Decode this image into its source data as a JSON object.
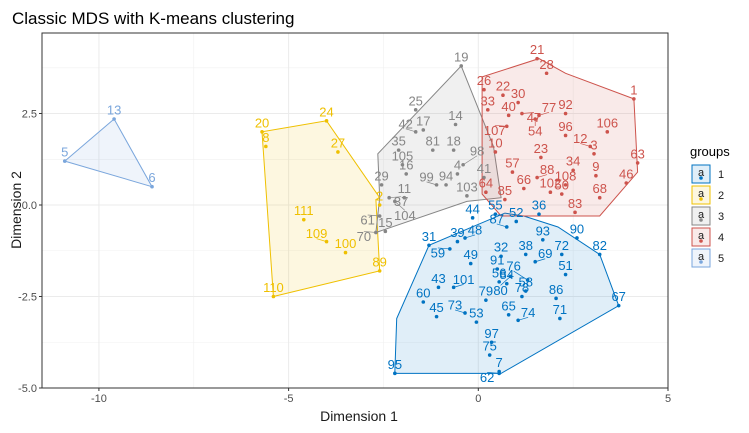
{
  "chart_data": {
    "type": "scatter",
    "title": "Classic MDS with K-means clustering",
    "xlabel": "Dimension 1",
    "ylabel": "Dimension 2",
    "xlim": [
      -11.5,
      5
    ],
    "ylim": [
      -5,
      4.7
    ],
    "x_ticks": [
      "-10",
      "-5",
      "0",
      "5"
    ],
    "y_ticks": [
      "-5.0",
      "-2.5",
      "0.0",
      "2.5"
    ],
    "grid": true,
    "legend": {
      "title": "groups",
      "position": "right",
      "entries": [
        "1",
        "2",
        "3",
        "4",
        "5"
      ]
    },
    "colors": {
      "1": "#0073C2",
      "2": "#EFC000",
      "3": "#868686",
      "4": "#CD534C",
      "5": "#7AA6DC"
    },
    "hulls": {
      "1": [
        [
          -2.2,
          -4.6
        ],
        [
          0.6,
          -4.6
        ],
        [
          3.7,
          -2.75
        ],
        [
          3.2,
          -1.35
        ],
        [
          2.1,
          -0.6
        ],
        [
          1.2,
          -0.3
        ],
        [
          0.7,
          -0.22
        ],
        [
          -1.3,
          -1.1
        ],
        [
          -2.15,
          -3.1
        ]
      ],
      "2": [
        [
          -5.4,
          -2.5
        ],
        [
          -2.6,
          -1.8
        ],
        [
          -2.7,
          0.15
        ],
        [
          -2.6,
          0.2
        ],
        [
          -4,
          2.3
        ],
        [
          -5.7,
          2.0
        ]
      ],
      "3": [
        [
          -2.7,
          -0.75
        ],
        [
          -0.3,
          0.1
        ],
        [
          0.6,
          0.2
        ],
        [
          0.4,
          1.6
        ],
        [
          -0.45,
          3.8
        ],
        [
          -2.65,
          1.4
        ],
        [
          -2.6,
          0.2
        ]
      ],
      "4": [
        [
          0.1,
          0.3
        ],
        [
          0.6,
          -0.3
        ],
        [
          3.2,
          -0.3
        ],
        [
          4.2,
          0.9
        ],
        [
          4.1,
          2.9
        ],
        [
          2.3,
          3.6
        ],
        [
          1.6,
          4.0
        ],
        [
          0.1,
          3.5
        ]
      ],
      "5": [
        [
          -10.9,
          1.2
        ],
        [
          -9.6,
          2.35
        ],
        [
          -8.6,
          0.5
        ]
      ]
    },
    "points": [
      {
        "label": "1",
        "group": 4,
        "x": 4.1,
        "y": 2.9
      },
      {
        "label": "2",
        "group": 2,
        "x": -2.6,
        "y": 0.0
      },
      {
        "label": "3",
        "group": 4,
        "x": 3.05,
        "y": 1.4
      },
      {
        "label": "4",
        "group": 3,
        "x": -0.55,
        "y": 0.85
      },
      {
        "label": "5",
        "group": 5,
        "x": -10.9,
        "y": 1.2
      },
      {
        "label": "6",
        "group": 5,
        "x": -8.6,
        "y": 0.5
      },
      {
        "label": "7",
        "group": 1,
        "x": 0.55,
        "y": -4.55
      },
      {
        "label": "8",
        "group": 2,
        "x": -5.6,
        "y": 1.6
      },
      {
        "label": "9",
        "group": 4,
        "x": 3.1,
        "y": 0.8
      },
      {
        "label": "10",
        "group": 4,
        "x": 0.45,
        "y": 1.45
      },
      {
        "label": "11",
        "group": 3,
        "x": -1.95,
        "y": 0.2
      },
      {
        "label": "12",
        "group": 4,
        "x": 2.95,
        "y": 1.6
      },
      {
        "label": "13",
        "group": 5,
        "x": -9.6,
        "y": 2.35
      },
      {
        "label": "14",
        "group": 3,
        "x": -0.6,
        "y": 2.2
      },
      {
        "label": "15",
        "group": 3,
        "x": -2.45,
        "y": -0.72
      },
      {
        "label": "16",
        "group": 3,
        "x": -1.9,
        "y": 0.85
      },
      {
        "label": "17",
        "group": 3,
        "x": -1.45,
        "y": 2.05
      },
      {
        "label": "18",
        "group": 3,
        "x": -0.65,
        "y": 1.5
      },
      {
        "label": "19",
        "group": 3,
        "x": -0.45,
        "y": 3.8
      },
      {
        "label": "20",
        "group": 2,
        "x": -5.7,
        "y": 2.0
      },
      {
        "label": "21",
        "group": 4,
        "x": 1.55,
        "y": 4.0
      },
      {
        "label": "22",
        "group": 4,
        "x": 0.65,
        "y": 3.0
      },
      {
        "label": "23",
        "group": 4,
        "x": 1.65,
        "y": 1.3
      },
      {
        "label": "24",
        "group": 2,
        "x": -4.0,
        "y": 2.3
      },
      {
        "label": "25",
        "group": 3,
        "x": -1.65,
        "y": 2.6
      },
      {
        "label": "26",
        "group": 4,
        "x": 0.15,
        "y": 3.15
      },
      {
        "label": "27",
        "group": 2,
        "x": -3.7,
        "y": 1.45
      },
      {
        "label": "28",
        "group": 4,
        "x": 1.8,
        "y": 3.6
      },
      {
        "label": "29",
        "group": 3,
        "x": -2.55,
        "y": 0.55
      },
      {
        "label": "30",
        "group": 4,
        "x": 1.05,
        "y": 2.8
      },
      {
        "label": "31",
        "group": 1,
        "x": -1.3,
        "y": -1.1
      },
      {
        "label": "32",
        "group": 1,
        "x": 0.6,
        "y": -1.4
      },
      {
        "label": "33",
        "group": 4,
        "x": 0.25,
        "y": 2.6
      },
      {
        "label": "34",
        "group": 4,
        "x": 2.5,
        "y": 0.95
      },
      {
        "label": "35",
        "group": 3,
        "x": -2.1,
        "y": 1.5
      },
      {
        "label": "36",
        "group": 1,
        "x": 1.6,
        "y": -0.25
      },
      {
        "label": "37",
        "group": 3,
        "x": -2.35,
        "y": 0.2
      },
      {
        "label": "38",
        "group": 1,
        "x": 1.25,
        "y": -1.35
      },
      {
        "label": "39",
        "group": 1,
        "x": -0.55,
        "y": -1.0
      },
      {
        "label": "40",
        "group": 4,
        "x": 0.8,
        "y": 2.45
      },
      {
        "label": "41",
        "group": 3,
        "x": 0.15,
        "y": 0.75
      },
      {
        "label": "42",
        "group": 3,
        "x": -1.65,
        "y": 2.0
      },
      {
        "label": "43",
        "group": 1,
        "x": -1.05,
        "y": -2.25
      },
      {
        "label": "44",
        "group": 1,
        "x": -0.15,
        "y": -0.35
      },
      {
        "label": "45",
        "group": 1,
        "x": -1.1,
        "y": -3.05
      },
      {
        "label": "46",
        "group": 4,
        "x": 3.9,
        "y": 0.6
      },
      {
        "label": "47",
        "group": 4,
        "x": 1.15,
        "y": 2.5
      },
      {
        "label": "48",
        "group": 1,
        "x": -0.35,
        "y": -0.9
      },
      {
        "label": "49",
        "group": 1,
        "x": -0.2,
        "y": -1.6
      },
      {
        "label": "50",
        "group": 4,
        "x": 2.2,
        "y": 0.3
      },
      {
        "label": "51",
        "group": 1,
        "x": 2.3,
        "y": -1.9
      },
      {
        "label": "52",
        "group": 1,
        "x": 1.0,
        "y": -0.45
      },
      {
        "label": "53",
        "group": 1,
        "x": -0.05,
        "y": -3.2
      },
      {
        "label": "54",
        "group": 4,
        "x": 1.5,
        "y": 2.35
      },
      {
        "label": "55",
        "group": 1,
        "x": 0.45,
        "y": -0.25
      },
      {
        "label": "56",
        "group": 1,
        "x": 0.55,
        "y": -2.1
      },
      {
        "label": "57",
        "group": 4,
        "x": 0.9,
        "y": 0.9
      },
      {
        "label": "58",
        "group": 1,
        "x": 1.25,
        "y": -2.35
      },
      {
        "label": "59",
        "group": 1,
        "x": -0.75,
        "y": -1.2
      },
      {
        "label": "60",
        "group": 1,
        "x": -1.45,
        "y": -2.65
      },
      {
        "label": "61",
        "group": 3,
        "x": -2.6,
        "y": -0.3
      },
      {
        "label": "62",
        "group": 1,
        "x": 0.55,
        "y": -4.6
      },
      {
        "label": "63",
        "group": 4,
        "x": 4.2,
        "y": 1.15
      },
      {
        "label": "64",
        "group": 4,
        "x": 0.2,
        "y": 0.35
      },
      {
        "label": "65",
        "group": 1,
        "x": 0.8,
        "y": -3.0
      },
      {
        "label": "66",
        "group": 4,
        "x": 1.2,
        "y": 0.45
      },
      {
        "label": "67",
        "group": 1,
        "x": 3.7,
        "y": -2.75
      },
      {
        "label": "68",
        "group": 4,
        "x": 3.2,
        "y": 0.2
      },
      {
        "label": "69",
        "group": 1,
        "x": 1.5,
        "y": -1.55
      },
      {
        "label": "70",
        "group": 3,
        "x": -2.7,
        "y": -0.75
      },
      {
        "label": "71",
        "group": 1,
        "x": 2.15,
        "y": -3.1
      },
      {
        "label": "72",
        "group": 1,
        "x": 2.2,
        "y": -1.35
      },
      {
        "label": "73",
        "group": 1,
        "x": -0.35,
        "y": -2.95
      },
      {
        "label": "74",
        "group": 1,
        "x": 1.05,
        "y": -3.15
      },
      {
        "label": "75",
        "group": 1,
        "x": 0.3,
        "y": -4.1
      },
      {
        "label": "76",
        "group": 1,
        "x": 1.3,
        "y": -2.05
      },
      {
        "label": "77",
        "group": 4,
        "x": 1.6,
        "y": 2.45
      },
      {
        "label": "78",
        "group": 1,
        "x": 1.15,
        "y": -2.5
      },
      {
        "label": "79",
        "group": 1,
        "x": 0.2,
        "y": -2.6
      },
      {
        "label": "80",
        "group": 1,
        "x": 0.85,
        "y": -1.95
      },
      {
        "label": "81",
        "group": 3,
        "x": -1.2,
        "y": 1.5
      },
      {
        "label": "82",
        "group": 1,
        "x": 3.2,
        "y": -1.35
      },
      {
        "label": "83",
        "group": 4,
        "x": 2.55,
        "y": -0.2
      },
      {
        "label": "84",
        "group": 1,
        "x": 0.75,
        "y": -2.15
      },
      {
        "label": "85",
        "group": 4,
        "x": 0.7,
        "y": 0.15
      },
      {
        "label": "86",
        "group": 1,
        "x": 2.05,
        "y": -2.55
      },
      {
        "label": "87",
        "group": 1,
        "x": 0.75,
        "y": -0.6
      },
      {
        "label": "88",
        "group": 4,
        "x": 1.55,
        "y": 0.75
      },
      {
        "label": "89",
        "group": 2,
        "x": -2.6,
        "y": -1.8
      },
      {
        "label": "90",
        "group": 1,
        "x": 2.6,
        "y": -0.9
      },
      {
        "label": "91",
        "group": 1,
        "x": 0.5,
        "y": -1.75
      },
      {
        "label": "92",
        "group": 4,
        "x": 2.3,
        "y": 2.5
      },
      {
        "label": "93",
        "group": 1,
        "x": 1.7,
        "y": -0.95
      },
      {
        "label": "94",
        "group": 3,
        "x": -0.85,
        "y": 0.55
      },
      {
        "label": "95",
        "group": 1,
        "x": -2.2,
        "y": -4.6
      },
      {
        "label": "96",
        "group": 4,
        "x": 2.3,
        "y": 1.9
      },
      {
        "label": "97",
        "group": 1,
        "x": 0.35,
        "y": -3.75
      },
      {
        "label": "98",
        "group": 3,
        "x": -0.4,
        "y": 1.1
      },
      {
        "label": "99",
        "group": 3,
        "x": -1.1,
        "y": 0.55
      },
      {
        "label": "100",
        "group": 2,
        "x": -3.5,
        "y": -1.3
      },
      {
        "label": "101",
        "group": 1,
        "x": -0.65,
        "y": -2.25
      },
      {
        "label": "102",
        "group": 4,
        "x": 1.9,
        "y": 0.35
      },
      {
        "label": "103",
        "group": 3,
        "x": -0.3,
        "y": 0.25
      },
      {
        "label": "104",
        "group": 3,
        "x": -2.2,
        "y": 0.1
      },
      {
        "label": "105",
        "group": 3,
        "x": -2.0,
        "y": 1.1
      },
      {
        "label": "106",
        "group": 4,
        "x": 3.4,
        "y": 2.0
      },
      {
        "label": "107",
        "group": 4,
        "x": 0.75,
        "y": 2.15
      },
      {
        "label": "108",
        "group": 4,
        "x": 2.3,
        "y": 0.55
      },
      {
        "label": "109",
        "group": 2,
        "x": -4.0,
        "y": -1.0
      },
      {
        "label": "110",
        "group": 2,
        "x": -5.4,
        "y": -2.5
      },
      {
        "label": "111",
        "group": 2,
        "x": -4.6,
        "y": -0.4
      }
    ]
  }
}
